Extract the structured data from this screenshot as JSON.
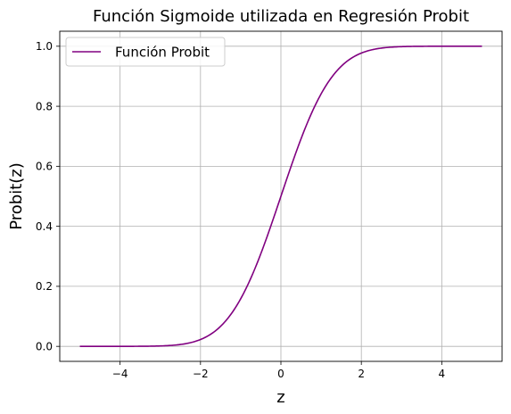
{
  "colors": {
    "line": "#800080",
    "grid": "#b0b0b0",
    "axis": "#000000",
    "legend_border": "#cccccc"
  },
  "chart_data": {
    "type": "line",
    "title": "Función Sigmoide utilizada en Regresión Probit",
    "xlabel": "z",
    "ylabel": "Probit(z)",
    "xlim": [
      -5.5,
      5.5
    ],
    "ylim": [
      -0.05,
      1.05
    ],
    "xticks": [
      -4,
      -2,
      0,
      2,
      4
    ],
    "xtick_labels": [
      "−4",
      "−2",
      "0",
      "2",
      "4"
    ],
    "yticks": [
      0.0,
      0.2,
      0.4,
      0.6,
      0.8,
      1.0
    ],
    "ytick_labels": [
      "0.0",
      "0.2",
      "0.4",
      "0.6",
      "0.8",
      "1.0"
    ],
    "grid": true,
    "legend_position": "top-left",
    "series": [
      {
        "name": "Función Probit",
        "color": "#800080",
        "x_range": [
          -5,
          5
        ],
        "x": [
          -5,
          -4.5,
          -4,
          -3.5,
          -3,
          -2.5,
          -2,
          -1.75,
          -1.5,
          -1.25,
          -1,
          -0.75,
          -0.5,
          -0.25,
          0,
          0.25,
          0.5,
          0.75,
          1,
          1.25,
          1.5,
          1.75,
          2,
          2.5,
          3,
          3.5,
          4,
          4.5,
          5
        ],
        "y": [
          0.0,
          0.0,
          0.0,
          0.0002,
          0.0013,
          0.0062,
          0.0228,
          0.0401,
          0.0668,
          0.1056,
          0.1587,
          0.2266,
          0.3085,
          0.4013,
          0.5,
          0.5987,
          0.6915,
          0.7734,
          0.8413,
          0.8944,
          0.9332,
          0.9599,
          0.9772,
          0.9938,
          0.9987,
          0.9998,
          1.0,
          1.0,
          1.0
        ]
      }
    ]
  }
}
